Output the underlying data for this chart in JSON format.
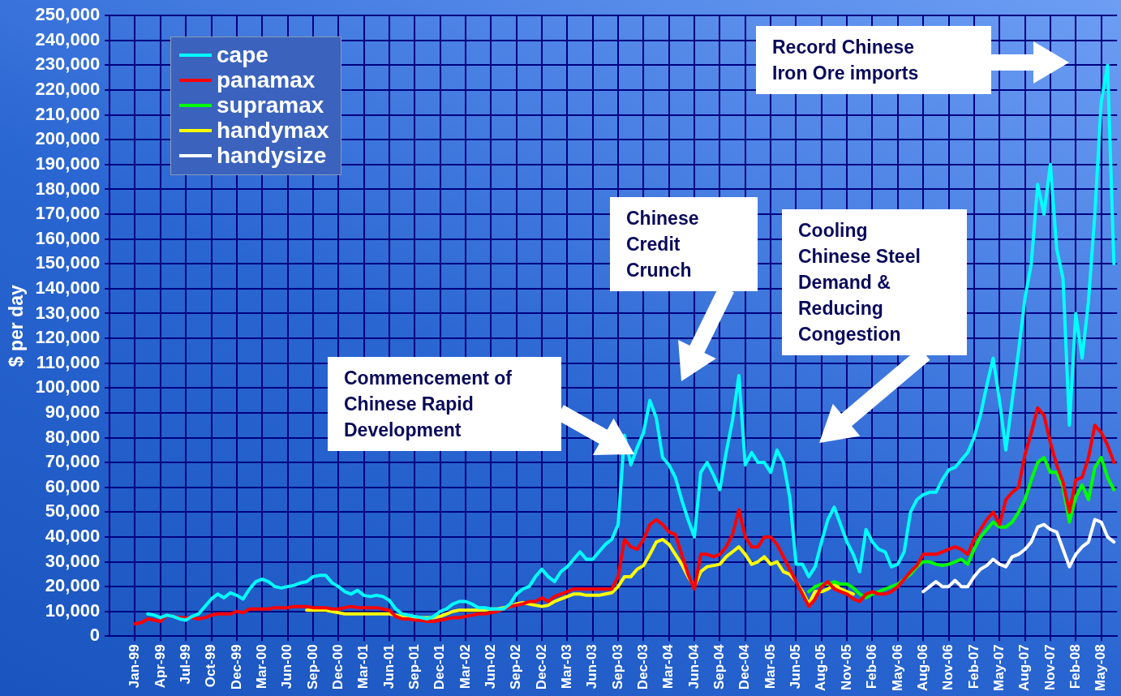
{
  "chart_data": {
    "type": "line",
    "ylabel": "$ per day",
    "categories": [
      "Jan-99",
      null,
      null,
      null,
      "Apr-99",
      null,
      null,
      null,
      "Jul-99",
      null,
      null,
      null,
      "Oct-99",
      null,
      null,
      null,
      "Dec-99",
      null,
      null,
      null,
      "Mar-00",
      null,
      null,
      null,
      "Jun-00",
      null,
      null,
      null,
      "Sep-00",
      null,
      null,
      null,
      "Dec-00",
      null,
      null,
      null,
      "Mar-01",
      null,
      null,
      null,
      "Jun-01",
      null,
      null,
      null,
      "Sep-01",
      null,
      null,
      null,
      "Dec-01",
      null,
      null,
      null,
      "Mar-02",
      null,
      null,
      null,
      "Jun-02",
      null,
      null,
      null,
      "Sep-02",
      null,
      null,
      null,
      "Dec-02",
      null,
      null,
      null,
      "Mar-03",
      null,
      null,
      null,
      "Jun-03",
      null,
      null,
      null,
      "Sep-03",
      null,
      null,
      null,
      "Dec-03",
      null,
      null,
      null,
      "Mar-04",
      null,
      null,
      null,
      "Jun-04",
      null,
      null,
      null,
      "Sep-04",
      null,
      null,
      null,
      "Dec-04",
      null,
      null,
      null,
      "Mar-05",
      null,
      null,
      null,
      "Jun-05",
      null,
      null,
      null,
      "Aug-05",
      null,
      null,
      null,
      "Nov-05",
      null,
      null,
      null,
      "Feb-06",
      null,
      null,
      null,
      "May-06",
      null,
      null,
      null,
      "Aug-06",
      null,
      null,
      null,
      "Nov-06",
      null,
      null,
      null,
      "Feb-07",
      null,
      null,
      null,
      "May-07",
      null,
      null,
      null,
      "Aug-07",
      null,
      null,
      null,
      "Nov-07",
      null,
      null,
      null,
      "Feb-08",
      null,
      null,
      null,
      "May-08",
      null,
      null
    ],
    "series": [
      {
        "name": "cape",
        "color": "#00ffff",
        "values": [
          null,
          null,
          9000,
          8500,
          7500,
          8500,
          8000,
          7000,
          6500,
          8000,
          9000,
          12000,
          15000,
          17000,
          15500,
          17500,
          16500,
          15000,
          19000,
          22000,
          23000,
          22000,
          20000,
          19500,
          20000,
          20500,
          21500,
          22000,
          24000,
          24500,
          24500,
          21500,
          20000,
          18000,
          17000,
          18500,
          16500,
          16000,
          16500,
          16000,
          14500,
          11000,
          9000,
          8500,
          8000,
          7500,
          7000,
          8000,
          10000,
          11000,
          13000,
          14000,
          14000,
          13000,
          11500,
          11500,
          11000,
          11000,
          11000,
          13000,
          17000,
          19000,
          20000,
          24000,
          27000,
          24000,
          22000,
          26000,
          28000,
          31000,
          34000,
          31000,
          31000,
          34000,
          37000,
          39000,
          45000,
          81000,
          69000,
          76000,
          82000,
          95000,
          88000,
          72000,
          69000,
          64000,
          55000,
          47000,
          40000,
          66000,
          70000,
          65000,
          59000,
          74000,
          87000,
          105000,
          69000,
          74000,
          70000,
          70000,
          66000,
          75000,
          70000,
          56000,
          29000,
          29000,
          24000,
          28000,
          38000,
          47000,
          52000,
          45000,
          38000,
          33000,
          26000,
          43000,
          38000,
          35000,
          34000,
          28000,
          29000,
          34000,
          50000,
          55000,
          57000,
          58000,
          58000,
          63000,
          67000,
          68000,
          71000,
          74000,
          80000,
          89000,
          101000,
          112000,
          95000,
          75000,
          95000,
          115000,
          136000,
          150000,
          182000,
          170000,
          190000,
          156000,
          144000,
          85000,
          130000,
          112000,
          135000,
          170000,
          215000,
          230000,
          150000
        ]
      },
      {
        "name": "panamax",
        "color": "#ff0000",
        "values": [
          5000,
          5500,
          7000,
          6500,
          6000,
          8500,
          8000,
          7500,
          7500,
          7500,
          7000,
          7500,
          8500,
          9000,
          9000,
          9000,
          10000,
          9500,
          11000,
          11000,
          11000,
          11000,
          11500,
          11500,
          11500,
          12000,
          12000,
          12000,
          11500,
          11500,
          11500,
          11000,
          11000,
          11500,
          12000,
          11500,
          11500,
          11500,
          11500,
          11000,
          10500,
          8000,
          7000,
          7000,
          6500,
          6500,
          6000,
          6000,
          6500,
          7000,
          7500,
          7500,
          8000,
          8500,
          9000,
          9000,
          9500,
          10000,
          11000,
          12000,
          12500,
          13000,
          14000,
          14000,
          15500,
          14000,
          16000,
          17000,
          18000,
          19000,
          19000,
          19000,
          19000,
          19000,
          19000,
          19000,
          24000,
          39000,
          36000,
          35000,
          39000,
          45000,
          47000,
          45000,
          42000,
          41000,
          33000,
          25000,
          19000,
          33000,
          33000,
          32000,
          33000,
          36000,
          41000,
          51000,
          40000,
          36000,
          36000,
          40000,
          40000,
          37000,
          32000,
          27000,
          22000,
          17000,
          12000,
          15000,
          20000,
          22000,
          19000,
          18000,
          17000,
          15000,
          14000,
          17000,
          18000,
          17000,
          17000,
          18000,
          20000,
          23000,
          26000,
          28500,
          33000,
          33000,
          33000,
          34000,
          35000,
          36000,
          35000,
          33000,
          39000,
          43000,
          47000,
          50000,
          45000,
          55000,
          58000,
          60000,
          73000,
          82000,
          92000,
          89000,
          78000,
          69000,
          62000,
          50000,
          63000,
          64000,
          72000,
          85000,
          82000,
          77000,
          70000
        ]
      },
      {
        "name": "supramax",
        "color": "#00ff00",
        "values": [
          null,
          null,
          null,
          null,
          null,
          null,
          null,
          null,
          null,
          null,
          null,
          null,
          null,
          null,
          null,
          null,
          null,
          null,
          null,
          null,
          null,
          null,
          null,
          null,
          null,
          null,
          null,
          null,
          null,
          null,
          null,
          null,
          null,
          null,
          null,
          null,
          null,
          null,
          null,
          null,
          null,
          null,
          null,
          null,
          null,
          null,
          null,
          null,
          null,
          null,
          null,
          null,
          null,
          null,
          null,
          null,
          null,
          null,
          null,
          null,
          null,
          null,
          null,
          null,
          null,
          null,
          null,
          null,
          null,
          null,
          null,
          null,
          null,
          null,
          null,
          null,
          null,
          null,
          null,
          null,
          null,
          null,
          null,
          null,
          null,
          null,
          null,
          null,
          null,
          null,
          null,
          null,
          null,
          null,
          null,
          null,
          null,
          null,
          null,
          null,
          null,
          null,
          null,
          null,
          null,
          null,
          18000,
          20000,
          21000,
          21000,
          22000,
          21000,
          21000,
          19500,
          17000,
          15500,
          17000,
          18000,
          19000,
          20000,
          21000,
          23000,
          25000,
          28000,
          30000,
          30000,
          29000,
          28500,
          29000,
          30000,
          31000,
          29000,
          35000,
          40000,
          43000,
          46000,
          44000,
          44000,
          46000,
          50000,
          55000,
          63000,
          70000,
          72000,
          66000,
          66000,
          60000,
          46000,
          56000,
          61000,
          55000,
          68000,
          72000,
          64000,
          59000
        ]
      },
      {
        "name": "handymax",
        "color": "#ffff00",
        "values": [
          null,
          null,
          null,
          null,
          null,
          null,
          null,
          null,
          null,
          null,
          null,
          null,
          null,
          null,
          null,
          null,
          null,
          null,
          null,
          null,
          null,
          null,
          null,
          null,
          null,
          null,
          null,
          10500,
          10500,
          10500,
          10500,
          10000,
          9500,
          9000,
          9000,
          9000,
          9000,
          9000,
          9000,
          9000,
          9000,
          8500,
          8000,
          8000,
          7500,
          7500,
          7500,
          7500,
          8000,
          9000,
          10000,
          10500,
          10500,
          10500,
          10500,
          10500,
          11000,
          11000,
          11500,
          12000,
          13000,
          13500,
          13000,
          12500,
          12000,
          12500,
          14000,
          15000,
          16000,
          17000,
          17000,
          16500,
          16500,
          16500,
          17000,
          17500,
          20000,
          24000,
          24000,
          27000,
          28500,
          33000,
          38000,
          39000,
          37000,
          33000,
          29000,
          24000,
          20000,
          26000,
          28000,
          28500,
          29000,
          32000,
          34000,
          36000,
          33000,
          29000,
          30000,
          32000,
          29000,
          30000,
          26000,
          25000,
          22000,
          18000,
          13000,
          18000,
          18000,
          19000,
          21000,
          19000,
          18000,
          17000,
          null,
          null,
          null,
          null,
          null,
          null,
          null,
          null,
          null,
          null,
          null,
          null,
          null,
          null,
          null,
          null,
          null,
          null,
          null,
          null,
          null,
          null,
          null,
          null,
          null,
          null,
          null,
          null,
          null,
          null,
          null,
          null,
          null,
          null,
          null,
          null,
          null,
          null,
          null,
          null,
          null
        ]
      },
      {
        "name": "handysize",
        "color": "#ffffff",
        "values": [
          null,
          null,
          null,
          null,
          null,
          null,
          null,
          null,
          null,
          null,
          null,
          null,
          null,
          null,
          null,
          null,
          null,
          null,
          null,
          null,
          null,
          null,
          null,
          null,
          null,
          null,
          null,
          null,
          null,
          null,
          null,
          null,
          null,
          null,
          null,
          null,
          null,
          null,
          null,
          null,
          null,
          null,
          null,
          null,
          null,
          null,
          null,
          null,
          null,
          null,
          null,
          null,
          null,
          null,
          null,
          null,
          null,
          null,
          null,
          null,
          null,
          null,
          null,
          null,
          null,
          null,
          null,
          null,
          null,
          null,
          null,
          null,
          null,
          null,
          null,
          null,
          null,
          null,
          null,
          null,
          null,
          null,
          null,
          null,
          null,
          null,
          null,
          null,
          null,
          null,
          null,
          null,
          null,
          null,
          null,
          null,
          null,
          null,
          null,
          null,
          null,
          null,
          null,
          null,
          null,
          null,
          null,
          null,
          null,
          null,
          null,
          null,
          null,
          null,
          null,
          null,
          null,
          null,
          null,
          null,
          null,
          null,
          null,
          null,
          18000,
          20000,
          22000,
          20000,
          20000,
          22500,
          20000,
          20000,
          24000,
          27000,
          28500,
          31000,
          29000,
          28000,
          32000,
          33000,
          35000,
          38000,
          44000,
          45000,
          43000,
          42000,
          35000,
          28000,
          33000,
          36000,
          38000,
          47000,
          46000,
          40000,
          38000
        ]
      }
    ],
    "ylim": [
      0,
      250000
    ],
    "yticks": [
      0,
      {
        "value": 10000,
        "label": "10,000"
      },
      {
        "value": 20000,
        "label": "20,000"
      },
      {
        "value": 30000,
        "label": "30,000"
      },
      {
        "value": 40000,
        "label": "40,000"
      },
      {
        "value": 50000,
        "label": "50,000"
      },
      {
        "value": 60000,
        "label": "60,000"
      },
      {
        "value": 70000,
        "label": "70,000"
      },
      {
        "value": 80000,
        "label": "80,000"
      },
      {
        "value": 90000,
        "label": "90,000"
      },
      {
        "value": 100000,
        "label": "100,000"
      },
      {
        "value": 110000,
        "label": "110,000"
      },
      {
        "value": 120000,
        "label": "120,000"
      },
      {
        "value": 130000,
        "label": "130,000"
      },
      {
        "value": 140000,
        "label": "140,000"
      },
      {
        "value": 150000,
        "label": "150,000"
      },
      {
        "value": 160000,
        "label": "160,000"
      },
      {
        "value": 170000,
        "label": "170,000"
      },
      {
        "value": 180000,
        "label": "180,000"
      },
      {
        "value": 190000,
        "label": "190,000"
      },
      {
        "value": 200000,
        "label": "200,000"
      },
      {
        "value": 210000,
        "label": "210,000"
      },
      {
        "value": 220000,
        "label": "220,000"
      },
      {
        "value": 230000,
        "label": "230,000"
      },
      {
        "value": 240000,
        "label": "240,000"
      },
      {
        "value": 250000,
        "label": "250,000"
      }
    ],
    "grid": true,
    "legend": "top left",
    "marker": "none",
    "line_style": "solid",
    "annotations": [
      "Commencement of\nChinese Rapid\nDevelopment",
      "Chinese\nCredit\nCrunch",
      "Cooling\nChinese Steel\nDemand &\nReducing\nCongestion",
      "Record Chinese\nIron Ore imports"
    ]
  }
}
